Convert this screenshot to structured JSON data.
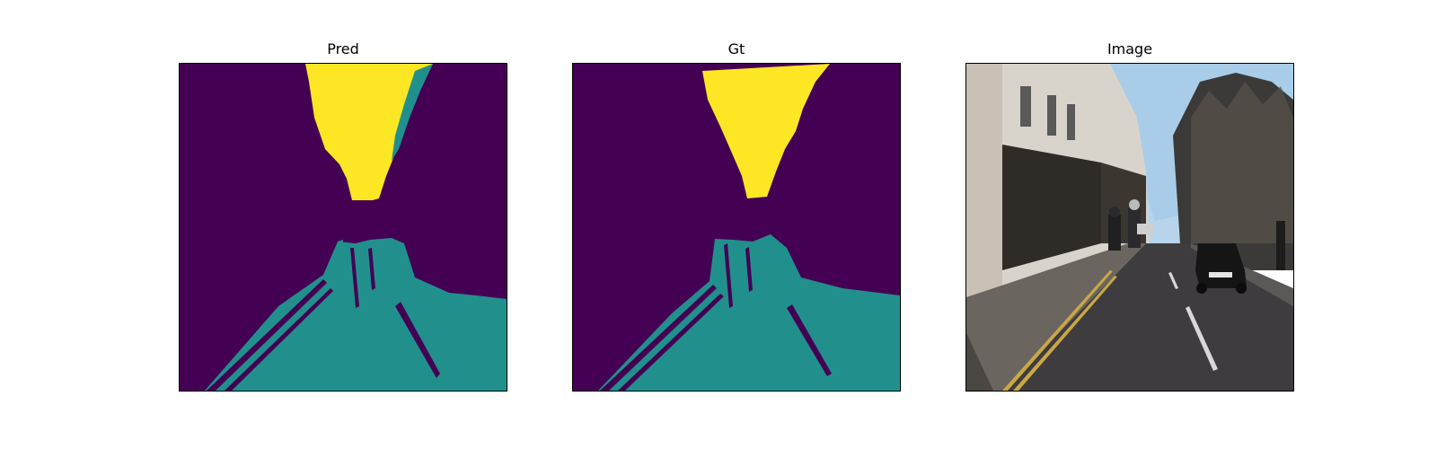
{
  "figure": {
    "panels": [
      {
        "title": "Pred"
      },
      {
        "title": "Gt"
      },
      {
        "title": "Image"
      }
    ]
  },
  "colors": {
    "background_class": "#440154",
    "road_class": "#21908d",
    "sky_class": "#fde725"
  }
}
